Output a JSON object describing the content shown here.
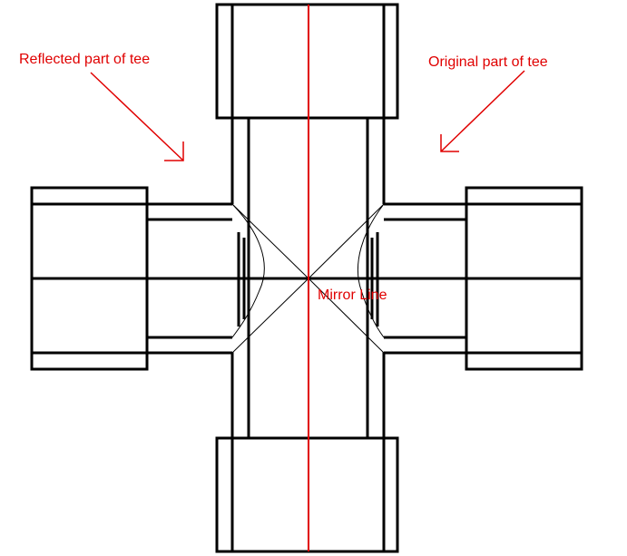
{
  "labels": {
    "reflected": "Reflected part of tee",
    "original": "Original part of tee",
    "mirror": "Mirror Line"
  },
  "colors": {
    "annotation": "#e00000",
    "outline": "#000000",
    "background": "#ffffff"
  }
}
